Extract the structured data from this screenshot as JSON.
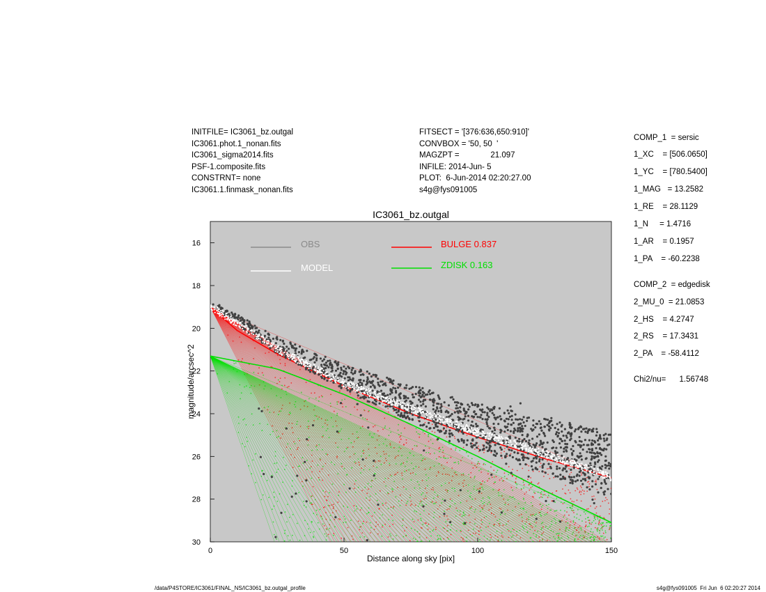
{
  "header_left": [
    "INITFILE= IC3061_bz.outgal",
    "IC3061.phot.1_nonan.fits",
    "IC3061_sigma2014.fits",
    "PSF-1.composite.fits",
    "CONSTRNT= none",
    "IC3061.1.finmask_nonan.fits"
  ],
  "header_middle": [
    "FITSECT = '[376:636,650:910]'",
    "CONVBOX = '50, 50  '",
    "MAGZPT =              21.097",
    "INFILE: 2014-Jun- 5",
    "PLOT:  6-Jun-2014 02:20:27.00",
    "s4g@fys091005"
  ],
  "params_right": [
    "COMP_1  = sersic",
    "1_XC    = [506.0650]",
    "1_YC    = [780.5400]",
    "1_MAG   = 13.2582",
    "1_RE    = 28.1129",
    "1_N     = 1.4716",
    "1_AR    = 0.1957",
    "1_PA    = -60.2238",
    "COMP_2  = edgedisk",
    "2_MU_0  = 21.0853",
    "2_HS    = 4.2747",
    "2_RS    = 17.3431",
    "2_PA    = -58.4112",
    "Chi2/nu=      1.56748"
  ],
  "footer_left": "/data/P4STORE/IC3061/FINAL_NS/IC3061_bz.outgal_profile",
  "footer_right": "s4g@fys091005  Fri Jun  6 02:20:27 2014",
  "colors": {
    "plot_bg": "#c8c8c8",
    "obs": "#8a8a8a",
    "obs_points": "#404040",
    "model": "#ffffff",
    "bulge": "#ff0000",
    "zdisk": "#00e000"
  },
  "chart_data": {
    "type": "scatter",
    "title": "IC3061_bz.outgal",
    "xlabel": "Distance along sky [pix]",
    "ylabel": "magnitude/arcsec^2",
    "xlim": [
      0,
      150
    ],
    "ylim": [
      30,
      15
    ],
    "xticks": [
      0,
      50,
      100,
      150
    ],
    "yticks": [
      16,
      18,
      20,
      22,
      24,
      26,
      28,
      30
    ],
    "legend_position": "top",
    "legend": [
      {
        "label": "OBS",
        "value": "",
        "color": "#8a8a8a"
      },
      {
        "label": "MODEL",
        "value": "",
        "color": "#ffffff"
      },
      {
        "label": "BULGE",
        "value": "0.837",
        "color": "#ff0000"
      },
      {
        "label": "ZDISK",
        "value": "0.163",
        "color": "#00e000"
      }
    ],
    "series": [
      {
        "name": "BULGE",
        "upper_envelope": [
          [
            0,
            19.0
          ],
          [
            10,
            20.1
          ],
          [
            25,
            21.2
          ],
          [
            50,
            22.7
          ],
          [
            75,
            24.0
          ],
          [
            100,
            25.1
          ],
          [
            125,
            26.1
          ],
          [
            150,
            27.0
          ]
        ],
        "apex": [
          0,
          19.0
        ],
        "lower_end": [
          45,
          30
        ]
      },
      {
        "name": "ZDISK",
        "upper_envelope": [
          [
            0,
            21.3
          ],
          [
            25,
            21.9
          ],
          [
            50,
            23.1
          ],
          [
            75,
            24.5
          ],
          [
            100,
            26.0
          ],
          [
            125,
            27.6
          ],
          [
            150,
            29.1
          ]
        ],
        "apex": [
          0,
          21.3
        ],
        "lower_end": [
          24,
          30
        ]
      },
      {
        "name": "MODEL",
        "upper_envelope": [
          [
            0,
            18.9
          ],
          [
            10,
            19.7
          ],
          [
            25,
            20.9
          ],
          [
            50,
            22.5
          ],
          [
            75,
            23.7
          ],
          [
            100,
            24.8
          ],
          [
            125,
            25.8
          ],
          [
            150,
            26.9
          ]
        ]
      },
      {
        "name": "OBS",
        "trend": [
          [
            0,
            18.8
          ],
          [
            25,
            20.8
          ],
          [
            50,
            22.3
          ],
          [
            75,
            23.5
          ],
          [
            100,
            24.6
          ],
          [
            125,
            25.5
          ],
          [
            150,
            26.4
          ]
        ]
      }
    ]
  }
}
